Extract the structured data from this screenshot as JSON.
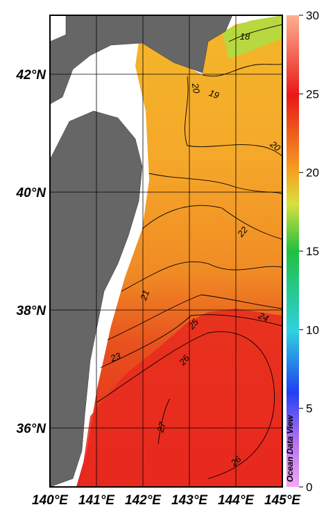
{
  "map": {
    "lon_range": [
      140,
      145
    ],
    "lat_range": [
      35,
      43
    ],
    "longitude_ticks": [
      {
        "value": 140,
        "label": "140°E"
      },
      {
        "value": 141,
        "label": "141°E"
      },
      {
        "value": 142,
        "label": "142°E"
      },
      {
        "value": 143,
        "label": "143°E"
      },
      {
        "value": 144,
        "label": "144°E"
      },
      {
        "value": 145,
        "label": "145°E"
      }
    ],
    "latitude_ticks": [
      {
        "value": 36,
        "label": "36°N"
      },
      {
        "value": 38,
        "label": "38°N"
      },
      {
        "value": 40,
        "label": "40°N"
      },
      {
        "value": 42,
        "label": "42°N"
      }
    ],
    "colorbar": {
      "range": [
        0,
        30
      ],
      "ticks": [
        0,
        5,
        10,
        15,
        20,
        25,
        30
      ]
    },
    "contour_labels": [
      "18",
      "19",
      "20",
      "20",
      "22",
      "21",
      "24",
      "25",
      "23",
      "26",
      "27",
      "26"
    ],
    "watermark": "Ocean Data View"
  }
}
